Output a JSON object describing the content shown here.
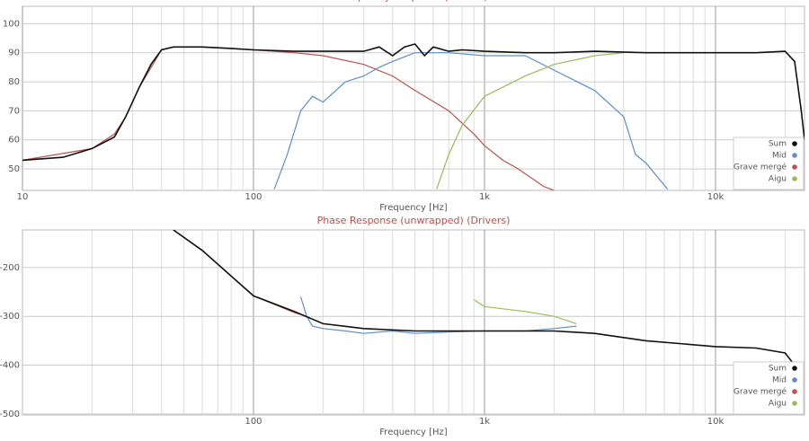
{
  "chart_data": [
    {
      "type": "line",
      "title": "Frequency Response (Drivers)",
      "xlabel": "Frequency [Hz]",
      "xscale": "log",
      "grid": true,
      "legend": "lower right",
      "xlim": [
        10,
        24270
      ],
      "ylim": [
        42.6,
        106
      ],
      "xticks": [
        10,
        100,
        {
          "value": 1000,
          "label": "1k"
        },
        {
          "value": 10000,
          "label": "10k"
        }
      ],
      "x_minor_grid": [
        20,
        30,
        40,
        50,
        60,
        70,
        80,
        90,
        200,
        300,
        400,
        500,
        600,
        700,
        800,
        900,
        2000,
        3000,
        4000,
        5000,
        6000,
        7000,
        8000,
        9000,
        20000
      ],
      "yticks": [
        50,
        60,
        70,
        80,
        90,
        100
      ],
      "series": [
        {
          "name": "Sum",
          "color": "#111111",
          "x": [
            10,
            15,
            20,
            25,
            28,
            32,
            36,
            40,
            45,
            60,
            80,
            100,
            150,
            200,
            300,
            350,
            400,
            450,
            500,
            550,
            600,
            700,
            800,
            1000,
            1500,
            2000,
            3000,
            5000,
            10000,
            15000,
            20000,
            22000,
            23500,
            24270
          ],
          "values": [
            53,
            54,
            57,
            61,
            68,
            78,
            86,
            91,
            92,
            92,
            91.5,
            91,
            90.5,
            90.5,
            90.5,
            92,
            89,
            92,
            93,
            89,
            92,
            90.5,
            91,
            90.5,
            90,
            90,
            90.5,
            90,
            90,
            90,
            90.5,
            87,
            70,
            60
          ]
        },
        {
          "name": "Mid",
          "color": "#5b8fc9",
          "x": [
            123,
            140,
            160,
            180,
            200,
            250,
            300,
            350,
            400,
            500,
            700,
            1000,
            1500,
            2000,
            3000,
            4000,
            4500,
            5000,
            6200
          ],
          "values": [
            43,
            55,
            70,
            75,
            73,
            80,
            82,
            85,
            87,
            90,
            90,
            89,
            89,
            84,
            77,
            68,
            55,
            52,
            43
          ]
        },
        {
          "name": "Grave mergé",
          "color": "#c0504d",
          "x": [
            10,
            20,
            25,
            28,
            32,
            40,
            45,
            60,
            100,
            150,
            200,
            300,
            400,
            500,
            700,
            900,
            1000,
            1200,
            1400,
            1800,
            2000
          ],
          "values": [
            53,
            57,
            62,
            68,
            78,
            91,
            92,
            92,
            91,
            90,
            89,
            86,
            82,
            77,
            70,
            62,
            58,
            53,
            50,
            44,
            42.6
          ]
        },
        {
          "name": "Aigu",
          "color": "#9bbb59",
          "x": [
            620,
            700,
            800,
            1000,
            1500,
            2000,
            3000,
            4000
          ],
          "values": [
            43,
            55,
            65,
            75,
            82,
            86,
            89,
            90
          ]
        }
      ]
    },
    {
      "type": "line",
      "title": "Phase Response (unwrapped) (Drivers)",
      "xlabel": "Frequency [Hz]",
      "xscale": "log",
      "grid": true,
      "legend": "lower right",
      "xlim": [
        10,
        24270
      ],
      "ylim": [
        -502,
        -123
      ],
      "xticks": [
        100,
        {
          "value": 1000,
          "label": "1k"
        },
        {
          "value": 10000,
          "label": "10k"
        }
      ],
      "x_minor_grid": [
        20,
        30,
        40,
        50,
        60,
        70,
        80,
        90,
        200,
        300,
        400,
        500,
        600,
        700,
        800,
        900,
        2000,
        3000,
        4000,
        5000,
        6000,
        7000,
        8000,
        9000,
        20000
      ],
      "yticks": [
        -200,
        -300,
        -400,
        -500
      ],
      "series": [
        {
          "name": "Sum",
          "color": "#111111",
          "x": [
            45,
            60,
            100,
            150,
            200,
            300,
            500,
            1000,
            2000,
            3000,
            5000,
            10000,
            15000,
            20000,
            22000,
            24000
          ],
          "values": [
            -123,
            -165,
            -258,
            -290,
            -315,
            -325,
            -330,
            -330,
            -330,
            -335,
            -350,
            -362,
            -365,
            -375,
            -400,
            -440
          ]
        },
        {
          "name": "Mid",
          "color": "#5b8fc9",
          "x": [
            160,
            170,
            180,
            200,
            250,
            300,
            400,
            500,
            700,
            1000,
            1500,
            2000,
            2500
          ],
          "values": [
            -260,
            -300,
            -320,
            -325,
            -330,
            -335,
            -330,
            -335,
            -332,
            -330,
            -330,
            -325,
            -320
          ]
        },
        {
          "name": "Grave mergé",
          "color": "#c0504d",
          "x": [
            45,
            60,
            100,
            150,
            170
          ],
          "values": [
            -123,
            -165,
            -258,
            -292,
            -300
          ]
        },
        {
          "name": "Aigu",
          "color": "#9bbb59",
          "x": [
            900,
            1000,
            1500,
            2000,
            2500
          ],
          "values": [
            -266,
            -280,
            -290,
            -300,
            -315
          ]
        }
      ]
    }
  ]
}
